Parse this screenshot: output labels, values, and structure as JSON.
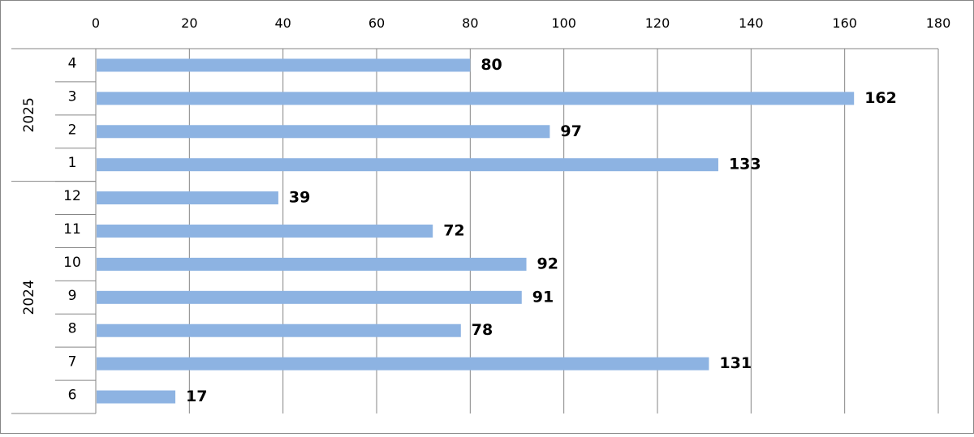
{
  "chart_data": {
    "type": "bar",
    "orientation": "horizontal",
    "groups": [
      {
        "name": "2025",
        "categories": [
          "4",
          "3",
          "2",
          "1"
        ],
        "values": [
          80,
          162,
          97,
          133
        ]
      },
      {
        "name": "2024",
        "categories": [
          "12",
          "11",
          "10",
          "9",
          "8",
          "7",
          "6"
        ],
        "values": [
          39,
          72,
          92,
          91,
          78,
          131,
          17
        ]
      }
    ],
    "xlim": [
      0,
      180
    ],
    "xticks": [
      0,
      20,
      40,
      60,
      80,
      100,
      120,
      140,
      160,
      180
    ],
    "x_axis_position": "top",
    "grid": true,
    "data_labels": true,
    "legend": "none",
    "bar_color": "#8DB3E2",
    "grid_color": "#868686",
    "label_color": "#000000"
  }
}
